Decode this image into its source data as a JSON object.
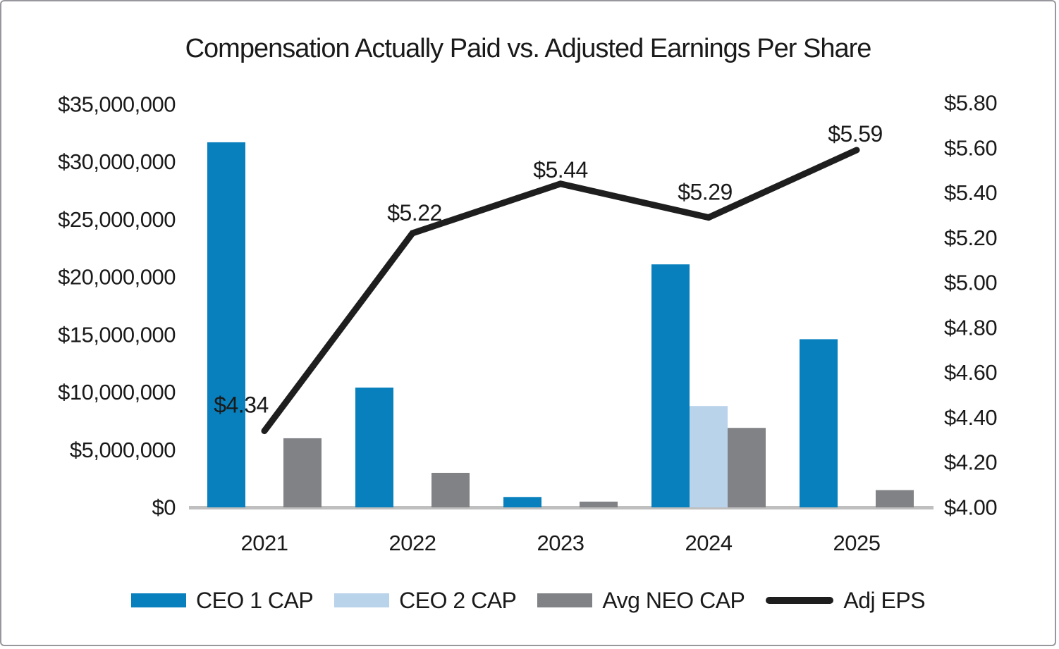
{
  "title": "Compensation Actually Paid vs. Adjusted Earnings Per Share",
  "chart_data": {
    "type": "combo-bar-line",
    "title": "Compensation Actually Paid vs. Adjusted Earnings Per Share",
    "categories": [
      "2021",
      "2022",
      "2023",
      "2024",
      "2025"
    ],
    "series": [
      {
        "name": "CEO 1 CAP",
        "type": "bar",
        "axis": "left",
        "color": "#0780BD",
        "values": [
          31700000,
          10400000,
          900000,
          21100000,
          14600000
        ]
      },
      {
        "name": "CEO 2 CAP",
        "type": "bar",
        "axis": "left",
        "color": "#B9D3EA",
        "values": [
          0,
          0,
          0,
          8800000,
          0
        ]
      },
      {
        "name": "Avg NEO CAP",
        "type": "bar",
        "axis": "left",
        "color": "#808285",
        "values": [
          6000000,
          3000000,
          500000,
          6900000,
          1500000
        ]
      },
      {
        "name": "Adj EPS",
        "type": "line",
        "axis": "right",
        "color": "#1E1E1E",
        "values": [
          4.34,
          5.22,
          5.44,
          5.29,
          5.59
        ],
        "point_labels": [
          "$4.34",
          "$5.22",
          "$5.44",
          "$5.29",
          "$5.59"
        ]
      }
    ],
    "left_axis": {
      "min": 0,
      "max": 35000000,
      "tick_values": [
        35000000,
        30000000,
        25000000,
        20000000,
        15000000,
        10000000,
        5000000,
        0
      ],
      "tick_labels": [
        "$35,000,000",
        "$30,000,000",
        "$25,000,000",
        "$20,000,000",
        "$15,000,000",
        "$10,000,000",
        "$5,000,000",
        "$0"
      ]
    },
    "right_axis": {
      "min": 4.0,
      "max": 5.8,
      "tick_values": [
        5.8,
        5.6,
        5.4,
        5.2,
        5.0,
        4.8,
        4.6,
        4.4,
        4.2,
        4.0
      ],
      "tick_labels": [
        "$5.80",
        "$5.60",
        "$5.40",
        "$5.20",
        "$5.00",
        "$4.80",
        "$4.60",
        "$4.40",
        "$4.20",
        "$4.00"
      ]
    },
    "legend_position": "bottom",
    "grid": false
  },
  "colors": {
    "text": "#1A1A1A",
    "axis_line": "#BFBFBF",
    "frame_border": "#97979D",
    "background": "#FFFFFF"
  }
}
